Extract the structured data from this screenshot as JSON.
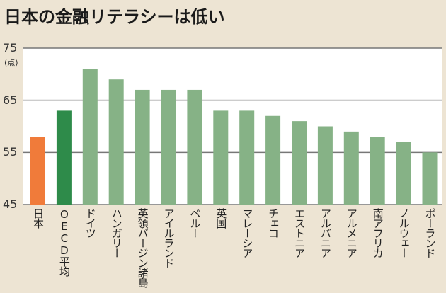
{
  "chart_data": {
    "type": "bar",
    "title": "日本の金融リテラシーは低い",
    "ylabel": "(点)",
    "ylim": [
      45,
      75
    ],
    "yticks": [
      45,
      55,
      65,
      75
    ],
    "grid": true,
    "categories": [
      "日本",
      "OECD平均",
      "ドイツ",
      "ハンガリー",
      "英領バージン諸島",
      "アイルランド",
      "ペルー",
      "英国",
      "マレーシア",
      "チェコ",
      "エストニア",
      "アルバニア",
      "アルメニア",
      "南アフリカ",
      "ノルウェー",
      "ポーランド"
    ],
    "values": [
      58,
      63,
      71,
      69,
      67,
      67,
      67,
      63,
      63,
      62,
      61,
      60,
      59,
      58,
      57,
      55
    ],
    "colors": {
      "japan": "#f07b3a",
      "oecd": "#2e8b4a",
      "others": "#86b286"
    }
  }
}
